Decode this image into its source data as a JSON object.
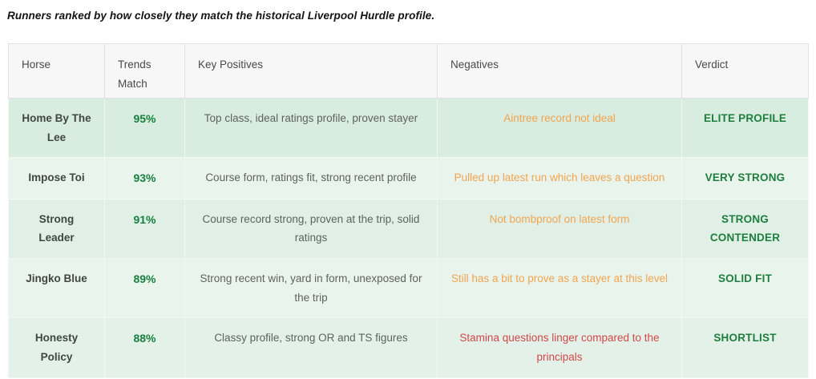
{
  "caption": "Runners ranked by how closely they match the historical Liverpool Hurdle profile.",
  "table": {
    "columns": [
      "Horse",
      "Trends Match",
      "Key Positives",
      "Negatives",
      "Verdict"
    ],
    "rows": [
      {
        "horse": "Home By The Lee",
        "trends_match": "95%",
        "key_positives": "Top class, ideal ratings profile, proven stayer",
        "negatives": "Aintree record not ideal",
        "negatives_tone": "warning",
        "verdict": "ELITE PROFILE"
      },
      {
        "horse": "Impose Toi",
        "trends_match": "93%",
        "key_positives": "Course form, ratings fit, strong recent profile",
        "negatives": "Pulled up latest run which leaves a question",
        "negatives_tone": "warning",
        "verdict": "VERY STRONG"
      },
      {
        "horse": "Strong Leader",
        "trends_match": "91%",
        "key_positives": "Course record strong, proven at the trip, solid ratings",
        "negatives": "Not bombproof on latest form",
        "negatives_tone": "warning",
        "verdict": "STRONG CONTENDER"
      },
      {
        "horse": "Jingko Blue",
        "trends_match": "89%",
        "key_positives": "Strong recent win, yard in form, unexposed for the trip",
        "negatives": "Still has a bit to prove as a stayer at this level",
        "negatives_tone": "warning",
        "verdict": "SOLID FIT"
      },
      {
        "horse": "Honesty Policy",
        "trends_match": "88%",
        "key_positives": "Classy profile, strong OR and TS figures",
        "negatives": "Stamina questions linger compared to the principals",
        "negatives_tone": "risk",
        "verdict": "SHORTLIST"
      }
    ]
  },
  "colors": {
    "accent_green": "#1e7e3e",
    "percent_green": "#17803e",
    "warning_orange": "#f2a44f",
    "risk_red": "#d0494b",
    "header_bg": "#f7f7f7",
    "header_text": "#4a4a4a",
    "body_text": "#5c6360",
    "horse_text": "#3f4743",
    "caption_text": "#141414",
    "border_gray": "#e2e2e2",
    "border_body": "#f2f8f4",
    "tint1": "#d8ecdf",
    "tint2": "#e9f4ed",
    "tint3": "#e0f0e6",
    "tint4": "#e9f4ed",
    "tint5": "#e3f1e8"
  }
}
